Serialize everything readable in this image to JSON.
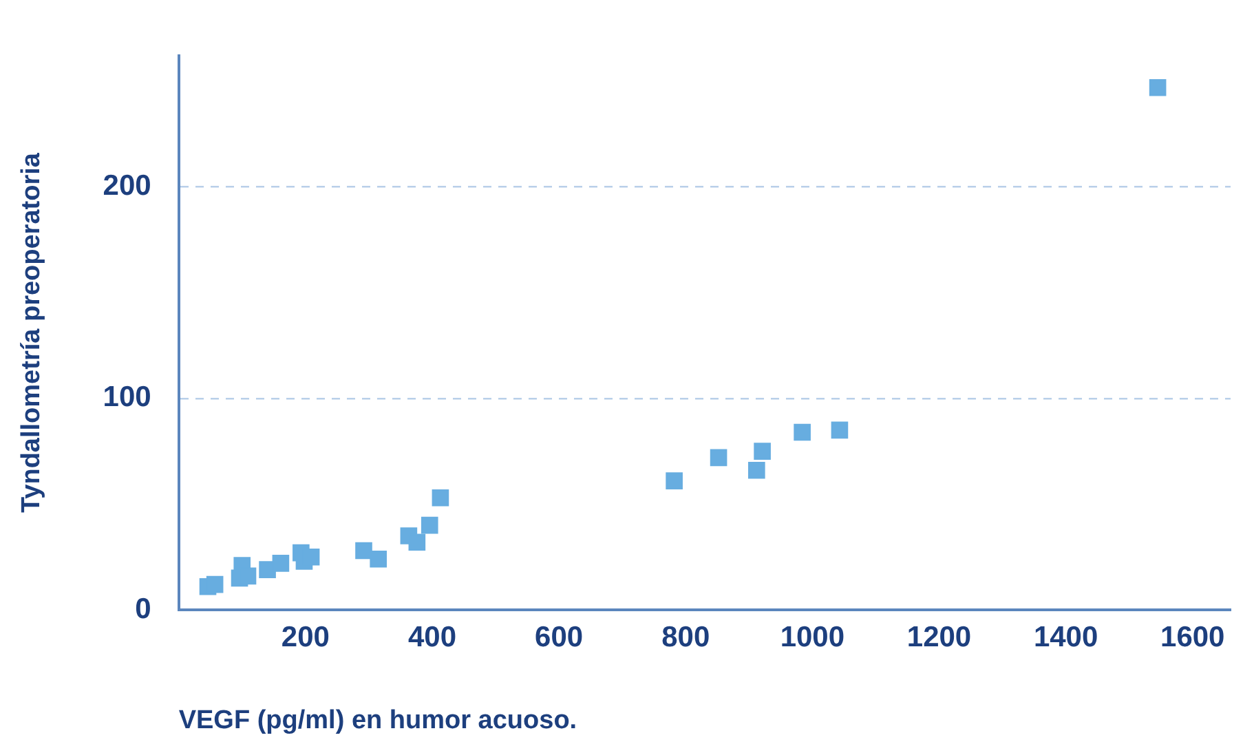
{
  "chart_data": {
    "type": "scatter",
    "xlabel": "VEGF (pg/ml) en humor acuoso.",
    "ylabel": "Tyndallometría preoperatoria",
    "x": [
      46,
      57,
      100,
      96,
      109,
      140,
      161,
      193,
      198,
      209,
      292,
      315,
      363,
      376,
      396,
      413,
      782,
      852,
      912,
      921,
      984,
      1043,
      1545
    ],
    "series": [
      {
        "color": "#67ade0",
        "values": [
          11,
          12,
          21,
          15,
          16,
          19,
          22,
          27,
          23,
          25,
          28,
          24,
          35,
          32,
          40,
          53,
          61,
          72,
          66,
          75,
          84,
          85,
          247
        ]
      }
    ],
    "xlim": [
      0,
      1660
    ],
    "xticks": [
      200,
      400,
      600,
      800,
      1000,
      1200,
      1400,
      1600
    ],
    "ylim": [
      0,
      262
    ],
    "yticks": [
      0,
      100,
      200
    ],
    "grid": "y",
    "marker": "square",
    "legend": false
  }
}
